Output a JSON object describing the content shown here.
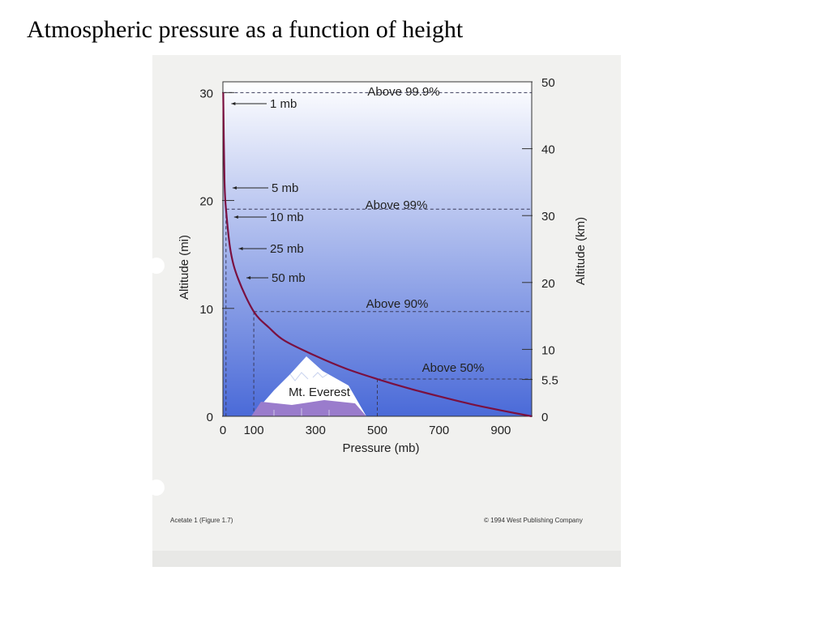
{
  "slide": {
    "title": "Atmospheric pressure as a function of height"
  },
  "colors": {
    "sky_top": "#ffffff",
    "sky_bottom": "#4a6ad8",
    "curve": "#7a1040",
    "mountain": "#9a7ccc"
  },
  "chart_data": {
    "type": "line",
    "xlabel": "Pressure (mb)",
    "ylabel_left": "Altitude (mi)",
    "ylabel_right": "Altitude (km)",
    "xlim": [
      0,
      1000
    ],
    "ylim_left": [
      0,
      31
    ],
    "ylim_right": [
      0,
      50
    ],
    "x_ticks": [
      "0",
      "100",
      "300",
      "500",
      "700",
      "900"
    ],
    "left_ticks": [
      "0",
      "10",
      "20",
      "30"
    ],
    "right_ticks": [
      "0",
      "5.5",
      "10",
      "20",
      "30",
      "40",
      "50"
    ],
    "series": [
      {
        "x": [
          1,
          5,
          10,
          25,
          50,
          100,
          150,
          200,
          300,
          400,
          500,
          600,
          700,
          800,
          900,
          1000
        ],
        "y": [
          30,
          22,
          19.2,
          15.3,
          12.7,
          9.7,
          8.2,
          7.0,
          5.6,
          4.4,
          3.45,
          2.6,
          1.85,
          1.15,
          0.55,
          0
        ]
      }
    ],
    "annotations": {
      "pressure_labels": [
        "1 mb",
        "5 mb",
        "10 mb",
        "25 mb",
        "50 mb"
      ],
      "fraction_labels": [
        "Above 99.9%",
        "Above 99%",
        "Above 90%",
        "Above 50%"
      ],
      "mountain_label": "Mt. Everest"
    }
  },
  "footer": {
    "left": "Acetate 1 (Figure 1.7)",
    "right": "© 1994 West Publishing Company"
  }
}
